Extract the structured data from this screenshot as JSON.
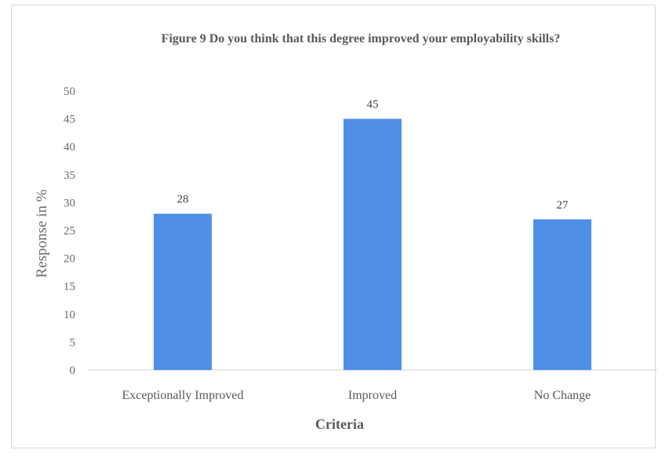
{
  "chart_data": {
    "type": "bar",
    "title": "Figure 9 Do you think that this degree improved your employability skills?",
    "xlabel": "Criteria",
    "ylabel": "Response in %",
    "categories": [
      "Exceptionally Improved",
      "Improved",
      "No Change"
    ],
    "values": [
      28,
      45,
      27
    ],
    "data_labels": [
      "28",
      "45",
      "27"
    ],
    "yticks": [
      "0",
      "5",
      "10",
      "15",
      "20",
      "25",
      "30",
      "35",
      "40",
      "45",
      "50"
    ],
    "ylim": [
      0,
      50
    ],
    "grid": false,
    "legend": "none",
    "bar_color": "#4f8fe6"
  }
}
